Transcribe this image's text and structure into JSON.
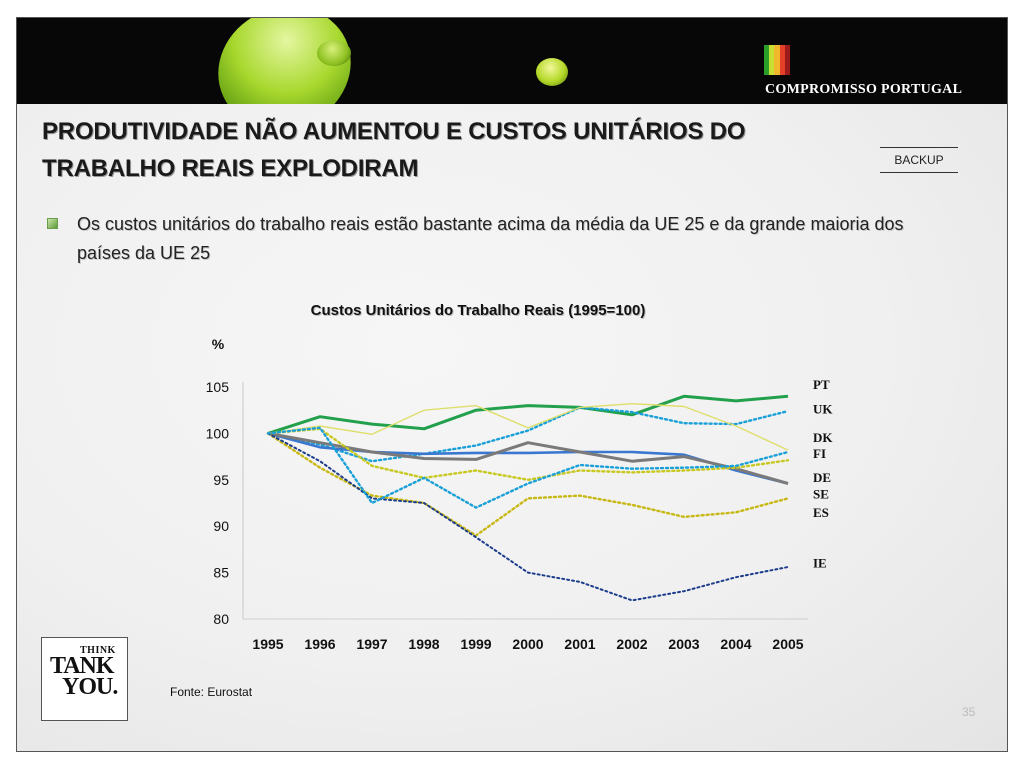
{
  "header": {
    "brand": "COMPROMISSO PORTUGAL",
    "flag_colors": [
      "#2aa02a",
      "#c8e034",
      "#f1b82e",
      "#e44027",
      "#9c1c1c"
    ]
  },
  "title": "PRODUTIVIDADE NÃO AUMENTOU E CUSTOS UNITÁRIOS DO TRABALHO REAIS EXPLODIRAM",
  "backup_label": "BACKUP",
  "bullet": "Os custos unitários do trabalho reais estão bastante acima da média da UE 25 e da grande maioria dos países da UE 25",
  "chart_data": {
    "type": "line",
    "title": "Custos Unitários do Trabalho Reais (1995=100)",
    "ylabel": "%",
    "ylim": [
      80,
      105
    ],
    "yticks": [
      80,
      85,
      90,
      95,
      100,
      105
    ],
    "x": [
      "1995",
      "1996",
      "1997",
      "1998",
      "1999",
      "2000",
      "2001",
      "2002",
      "2003",
      "2004",
      "2005"
    ],
    "series": [
      {
        "name": "PT",
        "color": "#22a04c",
        "style": "solid",
        "width": 3,
        "values": [
          100,
          101.8,
          101,
          100.5,
          102.5,
          103,
          102.8,
          102,
          104,
          103.5,
          104
        ]
      },
      {
        "name": "UK",
        "color": "#1aa0d8",
        "style": "dotted",
        "width": 2.4,
        "values": [
          100,
          98.8,
          97,
          97.8,
          98.7,
          100.3,
          102.8,
          102.3,
          101.1,
          101,
          102.4
        ]
      },
      {
        "name": "DK",
        "color": "#dede6c",
        "style": "solid",
        "width": 1.4,
        "values": [
          100,
          100.8,
          99.9,
          102.5,
          103,
          100.6,
          102.8,
          103.2,
          102.9,
          100.8,
          98.2
        ]
      },
      {
        "name": "FI",
        "color": "#3a78d0",
        "style": "solid",
        "width": 2.6,
        "values": [
          100,
          98.5,
          98,
          97.8,
          97.9,
          97.9,
          98,
          98,
          97.7,
          96,
          94.6
        ]
      },
      {
        "name": "DE",
        "color": "#7a7a7a",
        "style": "solid",
        "width": 3,
        "values": [
          100,
          99,
          98,
          97.3,
          97.2,
          99,
          98,
          97,
          97.5,
          96.2,
          94.6
        ]
      },
      {
        "name": "SE",
        "color": "#c8c820",
        "style": "dotted",
        "width": 2.4,
        "values": [
          100,
          100.5,
          96.5,
          95.2,
          96,
          95,
          96,
          95.8,
          96,
          96.3,
          97.1
        ]
      },
      {
        "name": "ES",
        "color": "#c8b814",
        "style": "dotted",
        "width": 2.4,
        "values": [
          100,
          96.3,
          93.3,
          92.5,
          89,
          93,
          93.3,
          92.3,
          91,
          91.5,
          93
        ]
      },
      {
        "name": "IE",
        "color": "#1c3c8c",
        "style": "dotted",
        "width": 2,
        "values": [
          100,
          97,
          93,
          92.5,
          88.8,
          85,
          84,
          82,
          83,
          84.5,
          85.6
        ]
      },
      {
        "name": "",
        "color": "#1aa0d8",
        "style": "dotted",
        "width": 2.4,
        "values": [
          100,
          100.6,
          92.5,
          95.2,
          92,
          94.6,
          96.6,
          96.2,
          96.3,
          96.5,
          98
        ]
      }
    ],
    "series_labels": [
      "PT",
      "UK",
      "DK",
      "FI",
      "DE",
      "SE",
      "ES",
      "IE"
    ]
  },
  "source": "Fonte: Eurostat",
  "think_tank": {
    "line1": "THINK",
    "line2": "TANK",
    "line3": "YOU."
  },
  "page_number": "35"
}
